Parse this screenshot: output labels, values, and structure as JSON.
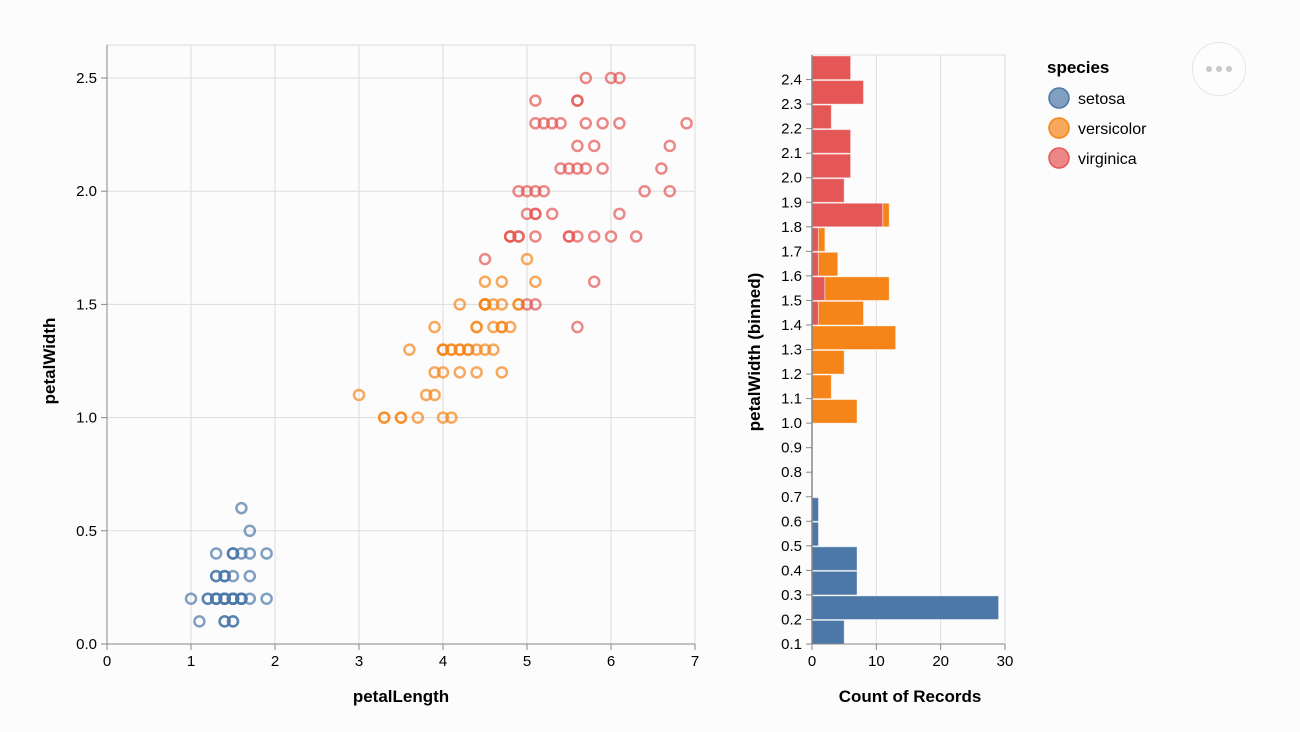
{
  "chart_data": [
    {
      "type": "scatter",
      "title": "",
      "xlabel": "petalLength",
      "ylabel": "petalWidth",
      "xlim": [
        0,
        7
      ],
      "ylim": [
        0,
        2.5
      ],
      "x_ticks": [
        "0",
        "1",
        "2",
        "3",
        "4",
        "5",
        "6",
        "7"
      ],
      "y_ticks": [
        "0.0",
        "0.5",
        "1.0",
        "1.5",
        "2.0",
        "2.5"
      ],
      "grid": true,
      "marker": "open-circle",
      "series": [
        {
          "name": "setosa",
          "points": [
            [
              1.4,
              0.2
            ],
            [
              1.4,
              0.2
            ],
            [
              1.3,
              0.2
            ],
            [
              1.5,
              0.2
            ],
            [
              1.4,
              0.2
            ],
            [
              1.7,
              0.4
            ],
            [
              1.4,
              0.3
            ],
            [
              1.5,
              0.2
            ],
            [
              1.4,
              0.2
            ],
            [
              1.5,
              0.1
            ],
            [
              1.5,
              0.2
            ],
            [
              1.6,
              0.2
            ],
            [
              1.4,
              0.1
            ],
            [
              1.1,
              0.1
            ],
            [
              1.2,
              0.2
            ],
            [
              1.5,
              0.4
            ],
            [
              1.3,
              0.4
            ],
            [
              1.4,
              0.3
            ],
            [
              1.7,
              0.3
            ],
            [
              1.5,
              0.3
            ],
            [
              1.7,
              0.2
            ],
            [
              1.5,
              0.4
            ],
            [
              1.0,
              0.2
            ],
            [
              1.7,
              0.5
            ],
            [
              1.9,
              0.2
            ],
            [
              1.6,
              0.2
            ],
            [
              1.6,
              0.4
            ],
            [
              1.5,
              0.2
            ],
            [
              1.4,
              0.2
            ],
            [
              1.6,
              0.2
            ],
            [
              1.6,
              0.2
            ],
            [
              1.5,
              0.4
            ],
            [
              1.5,
              0.1
            ],
            [
              1.4,
              0.2
            ],
            [
              1.5,
              0.2
            ],
            [
              1.2,
              0.2
            ],
            [
              1.3,
              0.2
            ],
            [
              1.4,
              0.1
            ],
            [
              1.3,
              0.2
            ],
            [
              1.5,
              0.2
            ],
            [
              1.3,
              0.3
            ],
            [
              1.3,
              0.3
            ],
            [
              1.3,
              0.2
            ],
            [
              1.6,
              0.6
            ],
            [
              1.9,
              0.4
            ],
            [
              1.4,
              0.3
            ],
            [
              1.6,
              0.2
            ],
            [
              1.4,
              0.2
            ],
            [
              1.5,
              0.2
            ],
            [
              1.4,
              0.2
            ]
          ]
        },
        {
          "name": "versicolor",
          "points": [
            [
              4.7,
              1.4
            ],
            [
              4.5,
              1.5
            ],
            [
              4.9,
              1.5
            ],
            [
              4.0,
              1.3
            ],
            [
              4.6,
              1.5
            ],
            [
              4.5,
              1.3
            ],
            [
              4.7,
              1.6
            ],
            [
              3.3,
              1.0
            ],
            [
              4.6,
              1.3
            ],
            [
              3.9,
              1.4
            ],
            [
              3.5,
              1.0
            ],
            [
              4.2,
              1.5
            ],
            [
              4.0,
              1.0
            ],
            [
              4.7,
              1.4
            ],
            [
              3.6,
              1.3
            ],
            [
              4.4,
              1.4
            ],
            [
              4.5,
              1.5
            ],
            [
              4.1,
              1.0
            ],
            [
              4.5,
              1.5
            ],
            [
              3.9,
              1.1
            ],
            [
              4.8,
              1.8
            ],
            [
              4.0,
              1.3
            ],
            [
              4.9,
              1.5
            ],
            [
              4.7,
              1.2
            ],
            [
              4.3,
              1.3
            ],
            [
              4.4,
              1.4
            ],
            [
              4.8,
              1.4
            ],
            [
              5.0,
              1.7
            ],
            [
              4.5,
              1.5
            ],
            [
              3.5,
              1.0
            ],
            [
              3.8,
              1.1
            ],
            [
              3.7,
              1.0
            ],
            [
              3.9,
              1.2
            ],
            [
              5.1,
              1.6
            ],
            [
              4.5,
              1.5
            ],
            [
              4.5,
              1.6
            ],
            [
              4.7,
              1.5
            ],
            [
              4.4,
              1.3
            ],
            [
              4.1,
              1.3
            ],
            [
              4.0,
              1.3
            ],
            [
              4.4,
              1.2
            ],
            [
              4.6,
              1.4
            ],
            [
              4.0,
              1.2
            ],
            [
              3.3,
              1.0
            ],
            [
              4.2,
              1.3
            ],
            [
              4.2,
              1.2
            ],
            [
              4.2,
              1.3
            ],
            [
              4.3,
              1.3
            ],
            [
              3.0,
              1.1
            ],
            [
              4.1,
              1.3
            ]
          ]
        },
        {
          "name": "virginica",
          "points": [
            [
              6.0,
              2.5
            ],
            [
              5.1,
              1.9
            ],
            [
              5.9,
              2.1
            ],
            [
              5.6,
              1.8
            ],
            [
              5.8,
              2.2
            ],
            [
              6.6,
              2.1
            ],
            [
              4.5,
              1.7
            ],
            [
              6.3,
              1.8
            ],
            [
              5.8,
              1.8
            ],
            [
              6.1,
              2.5
            ],
            [
              5.1,
              2.0
            ],
            [
              5.3,
              1.9
            ],
            [
              5.5,
              2.1
            ],
            [
              5.0,
              2.0
            ],
            [
              5.1,
              2.4
            ],
            [
              5.3,
              2.3
            ],
            [
              5.5,
              1.8
            ],
            [
              6.7,
              2.2
            ],
            [
              6.9,
              2.3
            ],
            [
              5.0,
              1.5
            ],
            [
              5.7,
              2.3
            ],
            [
              4.9,
              2.0
            ],
            [
              6.7,
              2.0
            ],
            [
              4.9,
              1.8
            ],
            [
              5.7,
              2.1
            ],
            [
              6.0,
              1.8
            ],
            [
              4.8,
              1.8
            ],
            [
              4.9,
              1.8
            ],
            [
              5.6,
              2.1
            ],
            [
              5.8,
              1.6
            ],
            [
              6.1,
              1.9
            ],
            [
              6.4,
              2.0
            ],
            [
              5.6,
              2.2
            ],
            [
              5.1,
              1.5
            ],
            [
              5.6,
              1.4
            ],
            [
              6.1,
              2.3
            ],
            [
              5.6,
              2.4
            ],
            [
              5.5,
              1.8
            ],
            [
              4.8,
              1.8
            ],
            [
              5.4,
              2.1
            ],
            [
              5.6,
              2.4
            ],
            [
              5.1,
              2.3
            ],
            [
              5.1,
              1.9
            ],
            [
              5.9,
              2.3
            ],
            [
              5.7,
              2.5
            ],
            [
              5.2,
              2.3
            ],
            [
              5.0,
              1.9
            ],
            [
              5.2,
              2.0
            ],
            [
              5.4,
              2.3
            ],
            [
              5.1,
              1.8
            ]
          ]
        }
      ]
    },
    {
      "type": "bar",
      "orientation": "horizontal",
      "stacked": true,
      "title": "",
      "xlabel": "Count of Records",
      "ylabel": "petalWidth (binned)",
      "xlim": [
        0,
        30
      ],
      "x_ticks": [
        "0",
        "10",
        "20",
        "30"
      ],
      "bin_step": 0.1,
      "bin_range": [
        0.1,
        2.5
      ],
      "y_ticks": [
        "0.1",
        "0.2",
        "0.3",
        "0.4",
        "0.5",
        "0.6",
        "0.7",
        "0.8",
        "0.9",
        "1.0",
        "1.1",
        "1.2",
        "1.3",
        "1.4",
        "1.5",
        "1.6",
        "1.7",
        "1.8",
        "1.9",
        "2.0",
        "2.1",
        "2.2",
        "2.3",
        "2.4"
      ],
      "grid": true,
      "categories": [
        "0.1",
        "0.2",
        "0.3",
        "0.4",
        "0.5",
        "0.6",
        "0.7",
        "0.8",
        "0.9",
        "1.0",
        "1.1",
        "1.2",
        "1.3",
        "1.4",
        "1.5",
        "1.6",
        "1.7",
        "1.8",
        "1.9",
        "2.0",
        "2.1",
        "2.2",
        "2.3",
        "2.4"
      ],
      "series": [
        {
          "name": "setosa",
          "values": [
            5,
            29,
            7,
            7,
            1,
            1,
            0,
            0,
            0,
            0,
            0,
            0,
            0,
            0,
            0,
            0,
            0,
            0,
            0,
            0,
            0,
            0,
            0,
            0
          ]
        },
        {
          "name": "virginica",
          "values": [
            0,
            0,
            0,
            0,
            0,
            0,
            0,
            0,
            0,
            0,
            0,
            0,
            0,
            1,
            2,
            1,
            1,
            11,
            5,
            6,
            6,
            3,
            8,
            6
          ]
        },
        {
          "name": "versicolor",
          "values": [
            0,
            0,
            0,
            0,
            0,
            0,
            0,
            0,
            0,
            7,
            3,
            5,
            13,
            7,
            10,
            3,
            1,
            1,
            0,
            0,
            0,
            0,
            0,
            0
          ]
        }
      ]
    }
  ],
  "legend": {
    "title": "species",
    "position": "top-right",
    "items": [
      {
        "label": "setosa",
        "color": "#4c78a8"
      },
      {
        "label": "versicolor",
        "color": "#f58518"
      },
      {
        "label": "virginica",
        "color": "#e45756"
      }
    ]
  },
  "colors": {
    "setosa": "#4c78a8",
    "versicolor": "#f58518",
    "virginica": "#e45756",
    "grid": "#dddddd",
    "axis": "#888888"
  },
  "actions_menu": {
    "icon": "ellipsis-icon"
  }
}
